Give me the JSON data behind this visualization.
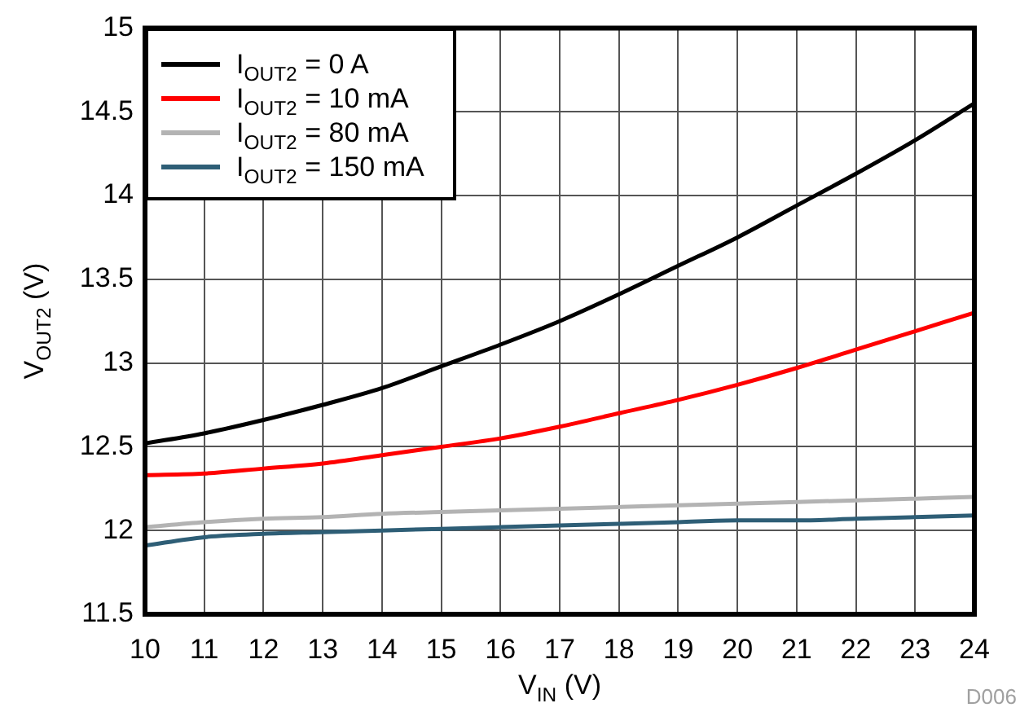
{
  "chart_data": {
    "type": "line",
    "xlabel": "V$_{IN}$ (V)",
    "ylabel": "V$_{OUT2}$ (V)",
    "x": [
      10,
      11,
      12,
      13,
      14,
      15,
      16,
      17,
      18,
      19,
      20,
      21,
      22,
      23,
      24
    ],
    "xlim": [
      10,
      24
    ],
    "xticks": [
      10,
      11,
      12,
      13,
      14,
      15,
      16,
      17,
      18,
      19,
      20,
      21,
      22,
      23,
      24
    ],
    "ylim": [
      11.5,
      15
    ],
    "yticks": [
      11.5,
      12,
      12.5,
      13,
      13.5,
      14,
      14.5,
      15
    ],
    "grid": true,
    "legend": "top left",
    "marker": "none",
    "line_style": "solid",
    "annotations": [
      "D006"
    ],
    "series": [
      {
        "name": "I$_{OUT2}$ = 0 A",
        "color": "#000000",
        "values": [
          12.52,
          12.58,
          12.66,
          12.75,
          12.85,
          12.98,
          13.11,
          13.25,
          13.41,
          13.58,
          13.75,
          13.94,
          14.13,
          14.33,
          14.55
        ]
      },
      {
        "name": "I$_{OUT2}$ = 10 mA",
        "color": "#ff0000",
        "values": [
          12.33,
          12.34,
          12.37,
          12.4,
          12.45,
          12.5,
          12.55,
          12.62,
          12.7,
          12.78,
          12.87,
          12.97,
          13.08,
          13.19,
          13.3
        ]
      },
      {
        "name": "I$_{OUT2}$ = 80 mA",
        "color": "#b3b3b3",
        "values": [
          12.02,
          12.05,
          12.07,
          12.08,
          12.1,
          12.11,
          12.12,
          12.13,
          12.14,
          12.15,
          12.16,
          12.17,
          12.18,
          12.19,
          12.2
        ]
      },
      {
        "name": "I$_{OUT2}$ = 150 mA",
        "color": "#2e5e76",
        "values": [
          11.91,
          11.96,
          11.98,
          11.99,
          12.0,
          12.01,
          12.02,
          12.03,
          12.04,
          12.05,
          12.06,
          12.06,
          12.07,
          12.08,
          12.09
        ]
      }
    ]
  }
}
